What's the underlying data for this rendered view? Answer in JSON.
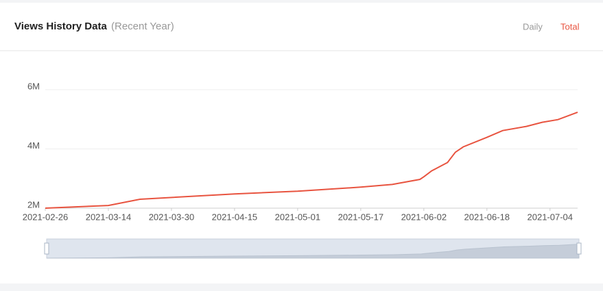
{
  "controls": [
    "Daily",
    "Total"
  ],
  "chart_data": {
    "type": "line",
    "title": "Views History Data",
    "subtitle": "(Recent Year)",
    "x": [
      "2021-02-26",
      "2021-03-14",
      "2021-03-22",
      "2021-04-15",
      "2021-05-01",
      "2021-05-17",
      "2021-05-25",
      "2021-06-01",
      "2021-06-02",
      "2021-06-04",
      "2021-06-08",
      "2021-06-10",
      "2021-06-12",
      "2021-06-18",
      "2021-06-22",
      "2021-06-28",
      "2021-07-02",
      "2021-07-06",
      "2021-07-11"
    ],
    "series": [
      {
        "name": "Total",
        "color": "#e8533f",
        "values": [
          2000000,
          2090000,
          2300000,
          2480000,
          2570000,
          2710000,
          2800000,
          2970000,
          3060000,
          3260000,
          3540000,
          3890000,
          4070000,
          4390000,
          4620000,
          4760000,
          4900000,
          4990000,
          5240000
        ]
      }
    ],
    "xlim": [
      "2021-02-26",
      "2021-07-11"
    ],
    "xticks": [
      "2021-02-26",
      "2021-03-14",
      "2021-03-30",
      "2021-04-15",
      "2021-05-01",
      "2021-05-17",
      "2021-06-02",
      "2021-06-18",
      "2021-07-04"
    ],
    "ylim": [
      2000000,
      6000000
    ],
    "yticks": [
      {
        "value": 2000000,
        "label": "2M"
      },
      {
        "value": 4000000,
        "label": "4M"
      },
      {
        "value": 6000000,
        "label": "6M"
      }
    ],
    "grid": true
  }
}
